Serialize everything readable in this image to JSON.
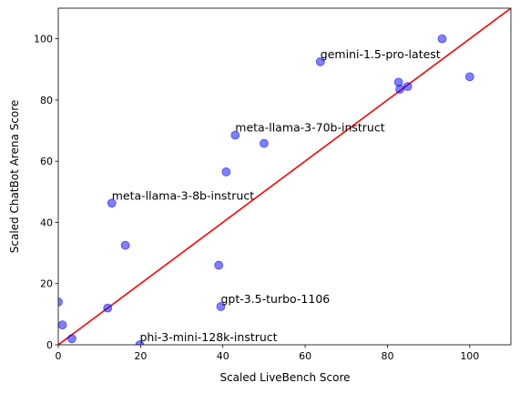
{
  "chart_data": {
    "type": "scatter",
    "title": "",
    "xlabel": "Scaled LiveBench Score",
    "ylabel": "Scaled ChatBot Arena Score",
    "xlim": [
      0,
      110
    ],
    "ylim": [
      0,
      110
    ],
    "xticks": [
      0,
      20,
      40,
      60,
      80,
      100
    ],
    "yticks": [
      0,
      20,
      40,
      60,
      80,
      100
    ],
    "grid": false,
    "point_color": "#0000ff",
    "line_color": "#ff0000",
    "fit_line": {
      "x": [
        0,
        110
      ],
      "y": [
        0,
        110
      ]
    },
    "points": [
      {
        "x": 0.0,
        "y": 14.0
      },
      {
        "x": 1.0,
        "y": 6.5
      },
      {
        "x": 3.3,
        "y": 2.0
      },
      {
        "x": 12.0,
        "y": 12.0
      },
      {
        "x": 13.0,
        "y": 46.3,
        "label": "meta-llama-3-8b-instruct"
      },
      {
        "x": 16.3,
        "y": 32.5
      },
      {
        "x": 19.8,
        "y": 0.0,
        "label": "phi-3-mini-128k-instruct"
      },
      {
        "x": 39.0,
        "y": 26.0
      },
      {
        "x": 39.5,
        "y": 12.5,
        "label": "gpt-3.5-turbo-1106"
      },
      {
        "x": 40.8,
        "y": 56.5
      },
      {
        "x": 43.0,
        "y": 68.5,
        "label": "meta-llama-3-70b-instruct"
      },
      {
        "x": 50.0,
        "y": 65.8
      },
      {
        "x": 63.7,
        "y": 92.5,
        "label": "gemini-1.5-pro-latest"
      },
      {
        "x": 82.7,
        "y": 85.8
      },
      {
        "x": 83.0,
        "y": 83.5
      },
      {
        "x": 84.9,
        "y": 84.4
      },
      {
        "x": 93.3,
        "y": 100.0
      },
      {
        "x": 100.0,
        "y": 87.6
      }
    ]
  }
}
